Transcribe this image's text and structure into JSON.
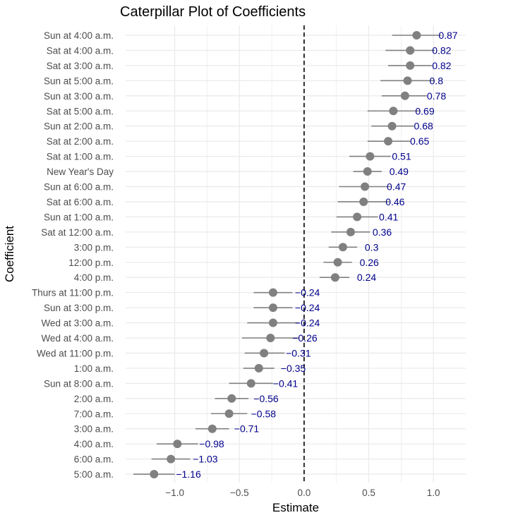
{
  "chart_data": {
    "type": "scatter",
    "title": "Caterpillar Plot of Coefficients",
    "xlabel": "Estimate",
    "ylabel": "Coefficient",
    "xlim": [
      -1.38,
      1.25
    ],
    "xticks": [
      -1.0,
      -0.5,
      0.0,
      0.5,
      1.0
    ],
    "xtick_labels": [
      "−1.0",
      "−0.5",
      "0.0",
      "0.5",
      "1.0"
    ],
    "reference_line": 0.0,
    "grid": true,
    "colors": {
      "point": "#808080",
      "interval": "#808080",
      "label": "#00008b",
      "reference": "#000000",
      "grid": "#ebebeb"
    },
    "points": [
      {
        "name": "Sun at 4:00 a.m.",
        "estimate": 0.87,
        "label": "0.87",
        "low": 0.68,
        "high": 1.06
      },
      {
        "name": "Sat at 4:00 a.m.",
        "estimate": 0.82,
        "label": "0.82",
        "low": 0.63,
        "high": 1.01
      },
      {
        "name": "Sat at 3:00 a.m.",
        "estimate": 0.82,
        "label": "0.82",
        "low": 0.65,
        "high": 0.99
      },
      {
        "name": "Sun at 5:00 a.m.",
        "estimate": 0.8,
        "label": "0.8",
        "low": 0.59,
        "high": 1.01
      },
      {
        "name": "Sun at 3:00 a.m.",
        "estimate": 0.78,
        "label": "0.78",
        "low": 0.6,
        "high": 0.95
      },
      {
        "name": "Sat at 5:00 a.m.",
        "estimate": 0.69,
        "label": "0.69",
        "low": 0.49,
        "high": 0.9
      },
      {
        "name": "Sun at 2:00 a.m.",
        "estimate": 0.68,
        "label": "0.68",
        "low": 0.52,
        "high": 0.85
      },
      {
        "name": "Sat at 2:00 a.m.",
        "estimate": 0.65,
        "label": "0.65",
        "low": 0.49,
        "high": 0.82
      },
      {
        "name": "Sat at 1:00 a.m.",
        "estimate": 0.51,
        "label": "0.51",
        "low": 0.35,
        "high": 0.67
      },
      {
        "name": "New Year's Day",
        "estimate": 0.49,
        "label": "0.49",
        "low": 0.38,
        "high": 0.6
      },
      {
        "name": "Sun at 6:00 a.m.",
        "estimate": 0.47,
        "label": "0.47",
        "low": 0.27,
        "high": 0.67
      },
      {
        "name": "Sat at 6:00 a.m.",
        "estimate": 0.46,
        "label": "0.46",
        "low": 0.26,
        "high": 0.66
      },
      {
        "name": "Sun at 1:00 a.m.",
        "estimate": 0.41,
        "label": "0.41",
        "low": 0.25,
        "high": 0.57
      },
      {
        "name": "Sat at 12:00 a.m.",
        "estimate": 0.36,
        "label": "0.36",
        "low": 0.21,
        "high": 0.51
      },
      {
        "name": "3:00 p.m.",
        "estimate": 0.3,
        "label": "0.3",
        "low": 0.19,
        "high": 0.41
      },
      {
        "name": "12:00 p.m.",
        "estimate": 0.26,
        "label": "0.26",
        "low": 0.15,
        "high": 0.37
      },
      {
        "name": "4:00 p.m.",
        "estimate": 0.24,
        "label": "0.24",
        "low": 0.12,
        "high": 0.35
      },
      {
        "name": "Thurs at 11:00 p.m.",
        "estimate": -0.24,
        "label": "−0.24",
        "low": -0.39,
        "high": -0.09
      },
      {
        "name": "Sun at 3:00 p.m.",
        "estimate": -0.24,
        "label": "−0.24",
        "low": -0.39,
        "high": -0.09
      },
      {
        "name": "Wed at 3:00 a.m.",
        "estimate": -0.24,
        "label": "−0.24",
        "low": -0.44,
        "high": -0.04
      },
      {
        "name": "Wed at 4:00 a.m.",
        "estimate": -0.26,
        "label": "−0.26",
        "low": -0.48,
        "high": -0.04
      },
      {
        "name": "Wed at 11:00 p.m.",
        "estimate": -0.31,
        "label": "−0.31",
        "low": -0.46,
        "high": -0.15
      },
      {
        "name": "1:00 a.m.",
        "estimate": -0.35,
        "label": "−0.35",
        "low": -0.47,
        "high": -0.23
      },
      {
        "name": "Sun at 8:00 a.m.",
        "estimate": -0.41,
        "label": "−0.41",
        "low": -0.58,
        "high": -0.24
      },
      {
        "name": "2:00 a.m.",
        "estimate": -0.56,
        "label": "−0.56",
        "low": -0.69,
        "high": -0.43
      },
      {
        "name": "7:00 a.m.",
        "estimate": -0.58,
        "label": "−0.58",
        "low": -0.72,
        "high": -0.44
      },
      {
        "name": "3:00 a.m.",
        "estimate": -0.71,
        "label": "−0.71",
        "low": -0.84,
        "high": -0.58
      },
      {
        "name": "4:00 a.m.",
        "estimate": -0.98,
        "label": "−0.98",
        "low": -1.14,
        "high": -0.82
      },
      {
        "name": "6:00 a.m.",
        "estimate": -1.03,
        "label": "−1.03",
        "low": -1.18,
        "high": -0.88
      },
      {
        "name": "5:00 a.m.",
        "estimate": -1.16,
        "label": "−1.16",
        "low": -1.32,
        "high": -1.0
      }
    ]
  }
}
